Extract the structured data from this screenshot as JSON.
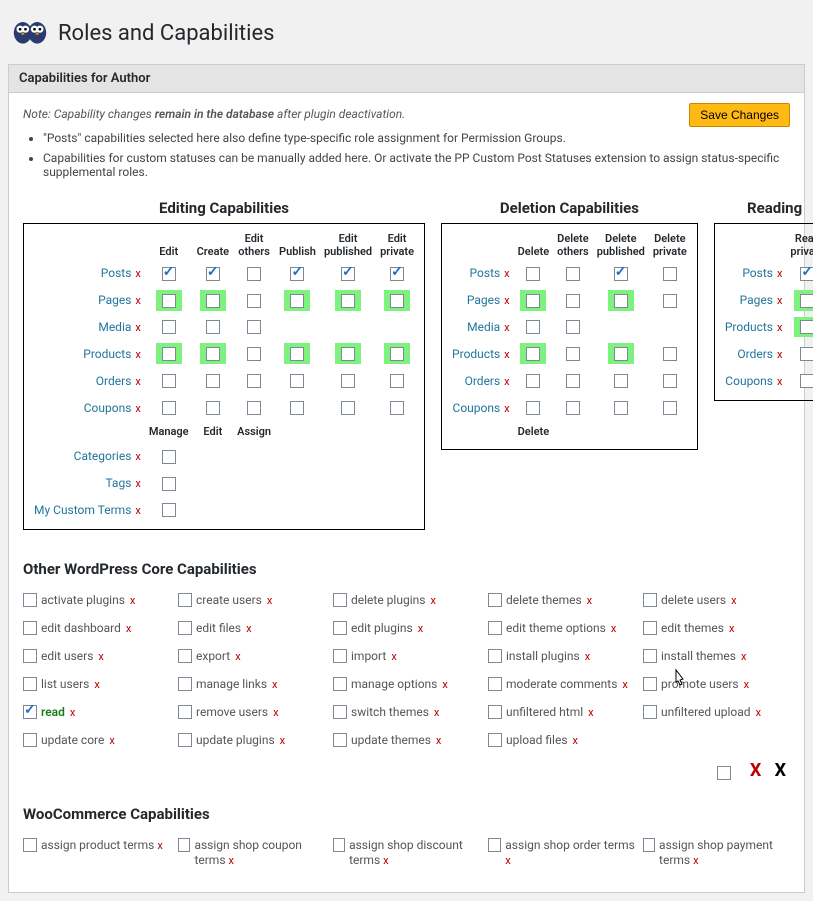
{
  "header": {
    "title": "Roles and Capabilities"
  },
  "subheader": "Capabilities for Author",
  "save_label": "Save Changes",
  "note_prefix": "Note:",
  "note_italic1": "Capability changes",
  "note_bold": "remain in the database",
  "note_italic2": "after plugin deactivation.",
  "bullet1": "\"Posts\" capabilities selected here also define type-specific role assignment for Permission Groups.",
  "bullet2": "Capabilities for custom statuses can be manually added here. Or activate the PP Custom Post Statuses extension to assign status-specific supplemental roles.",
  "colors": {
    "accent_link": "#21759b",
    "accent_x": "#b00",
    "green_highlight": "#7ef27e",
    "save_bg": "#feba12",
    "save_border": "#cc8800",
    "check_color": "#1e6fbf"
  },
  "groups": {
    "editing": {
      "title": "Editing Capabilities",
      "cols": [
        "Edit",
        "Create",
        "Edit others",
        "Publish",
        "Edit published",
        "Edit private"
      ],
      "rows": [
        {
          "label": "Posts",
          "cells": [
            {
              "c": true
            },
            {
              "c": true
            },
            {
              "c": false
            },
            {
              "c": true
            },
            {
              "c": true
            },
            {
              "c": true
            }
          ]
        },
        {
          "label": "Pages",
          "cells": [
            {
              "c": false,
              "g": true
            },
            {
              "c": false,
              "g": true
            },
            {
              "c": false
            },
            {
              "c": false,
              "g": true
            },
            {
              "c": false,
              "g": true
            },
            {
              "c": false,
              "g": true
            }
          ]
        },
        {
          "label": "Media",
          "cells": [
            {
              "c": false
            },
            {
              "c": false
            },
            {
              "c": false
            },
            null,
            null,
            null
          ]
        },
        {
          "label": "Products",
          "cells": [
            {
              "c": false,
              "g": true
            },
            {
              "c": false,
              "g": true
            },
            {
              "c": false
            },
            {
              "c": false,
              "g": true
            },
            {
              "c": false,
              "g": true
            },
            {
              "c": false,
              "g": true
            }
          ]
        },
        {
          "label": "Orders",
          "cells": [
            {
              "c": false
            },
            {
              "c": false
            },
            {
              "c": false
            },
            {
              "c": false
            },
            {
              "c": false
            },
            {
              "c": false
            }
          ]
        },
        {
          "label": "Coupons",
          "cells": [
            {
              "c": false
            },
            {
              "c": false
            },
            {
              "c": false
            },
            {
              "c": false
            },
            {
              "c": false
            },
            {
              "c": false
            }
          ]
        }
      ],
      "sub_cols": [
        "Manage",
        "Edit",
        "Assign"
      ],
      "sub_rows": [
        {
          "label": "Categories",
          "cells": [
            {
              "c": false
            },
            null,
            null
          ]
        },
        {
          "label": "Tags",
          "cells": [
            {
              "c": false
            },
            null,
            null
          ]
        },
        {
          "label": "My Custom Terms",
          "cells": [
            {
              "c": false
            },
            null,
            null
          ]
        }
      ]
    },
    "deletion": {
      "title": "Deletion Capabilities",
      "cols": [
        "Delete",
        "Delete others",
        "Delete published",
        "Delete private"
      ],
      "rows": [
        {
          "label": "Posts",
          "cells": [
            {
              "c": false
            },
            {
              "c": false
            },
            {
              "c": true
            },
            {
              "c": false
            }
          ]
        },
        {
          "label": "Pages",
          "cells": [
            {
              "c": false,
              "g": true
            },
            {
              "c": false
            },
            {
              "c": false,
              "g": true
            },
            {
              "c": false
            }
          ]
        },
        {
          "label": "Media",
          "cells": [
            {
              "c": false
            },
            {
              "c": false
            },
            null,
            null
          ]
        },
        {
          "label": "Products",
          "cells": [
            {
              "c": false,
              "g": true
            },
            {
              "c": false
            },
            {
              "c": false,
              "g": true
            },
            {
              "c": false
            }
          ]
        },
        {
          "label": "Orders",
          "cells": [
            {
              "c": false
            },
            {
              "c": false
            },
            {
              "c": false
            },
            {
              "c": false
            }
          ]
        },
        {
          "label": "Coupons",
          "cells": [
            {
              "c": false
            },
            {
              "c": false
            },
            {
              "c": false
            },
            {
              "c": false
            }
          ]
        }
      ],
      "sub_cols": [
        "Delete"
      ],
      "sub_rows": []
    },
    "reading": {
      "title": "Reading",
      "cols": [
        "Read private"
      ],
      "rows": [
        {
          "label": "Posts",
          "cells": [
            {
              "c": true
            }
          ]
        },
        {
          "label": "Pages",
          "cells": [
            {
              "c": false,
              "g": true
            }
          ]
        },
        {
          "label": "Products",
          "cells": [
            {
              "c": false,
              "g": true
            }
          ]
        },
        {
          "label": "Orders",
          "cells": [
            {
              "c": false
            }
          ]
        },
        {
          "label": "Coupons",
          "cells": [
            {
              "c": false
            }
          ]
        }
      ]
    }
  },
  "other_core_title": "Other WordPress Core Capabilities",
  "other_core": [
    {
      "label": "activate plugins",
      "c": false,
      "x": true
    },
    {
      "label": "create users",
      "c": false,
      "x": true
    },
    {
      "label": "delete plugins",
      "c": false,
      "x": true
    },
    {
      "label": "delete themes",
      "c": false,
      "x": true
    },
    {
      "label": "delete users",
      "c": false,
      "x": true
    },
    {
      "label": "edit dashboard",
      "c": false,
      "x": true
    },
    {
      "label": "edit files",
      "c": false,
      "x": true
    },
    {
      "label": "edit plugins",
      "c": false,
      "x": true
    },
    {
      "label": "edit theme options",
      "c": false,
      "x": true
    },
    {
      "label": "edit themes",
      "c": false,
      "x": true
    },
    {
      "label": "edit users",
      "c": false,
      "x": true
    },
    {
      "label": "export",
      "c": false,
      "x": true
    },
    {
      "label": "import",
      "c": false,
      "x": true
    },
    {
      "label": "install plugins",
      "c": false,
      "x": true
    },
    {
      "label": "install themes",
      "c": false,
      "x": true
    },
    {
      "label": "list users",
      "c": false,
      "x": true
    },
    {
      "label": "manage links",
      "c": false,
      "x": true
    },
    {
      "label": "manage options",
      "c": false,
      "x": true
    },
    {
      "label": "moderate comments",
      "c": false,
      "x": true
    },
    {
      "label": "promote users",
      "c": false,
      "x": true
    },
    {
      "label": "read",
      "c": true,
      "x": true
    },
    {
      "label": "remove users",
      "c": false,
      "x": true
    },
    {
      "label": "switch themes",
      "c": false,
      "x": true
    },
    {
      "label": "unfiltered html",
      "c": false,
      "x": true
    },
    {
      "label": "unfiltered upload",
      "c": false,
      "x": true
    },
    {
      "label": "update core",
      "c": false,
      "x": true
    },
    {
      "label": "update plugins",
      "c": false,
      "x": true
    },
    {
      "label": "update themes",
      "c": false,
      "x": true
    },
    {
      "label": "upload files",
      "c": false,
      "x": true
    }
  ],
  "wc_title": "WooCommerce Capabilities",
  "wc": [
    {
      "label": "assign product terms",
      "x": true
    },
    {
      "label": "assign shop coupon terms",
      "x": true
    },
    {
      "label": "assign shop discount terms",
      "x": true
    },
    {
      "label": "assign shop order terms",
      "x": true
    },
    {
      "label": "assign shop payment terms",
      "x": true
    }
  ]
}
